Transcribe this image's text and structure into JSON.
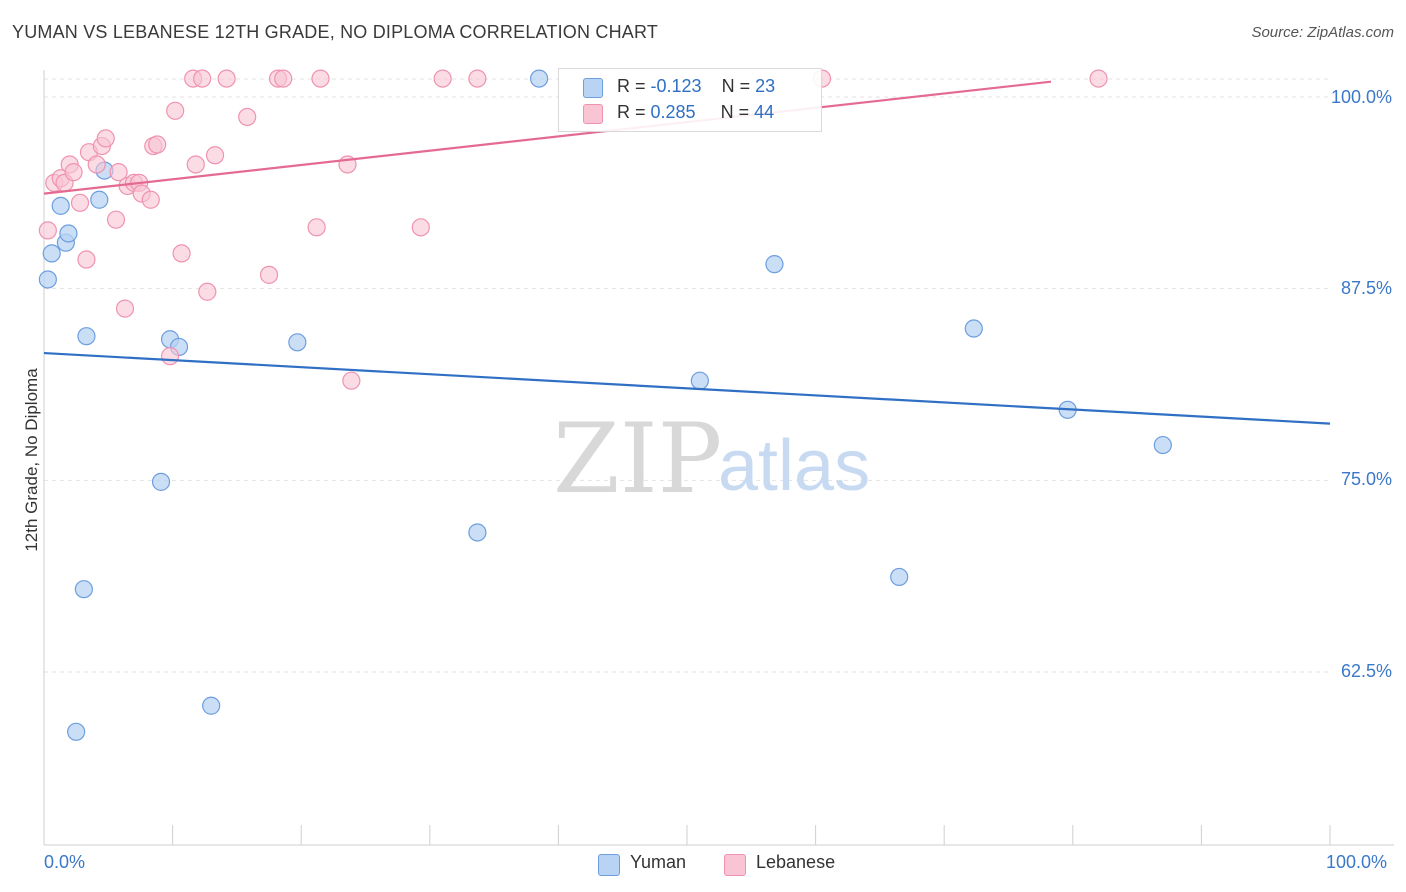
{
  "header": {
    "title": "YUMAN VS LEBANESE 12TH GRADE, NO DIPLOMA CORRELATION CHART",
    "source": "Source: ZipAtlas.com"
  },
  "watermark": {
    "zip": "ZIP",
    "atlas": "atlas"
  },
  "legend_box": {
    "row1": {
      "r_label": "R = ",
      "r_value": "-0.123",
      "n_label": "N = ",
      "n_value": "23"
    },
    "row2": {
      "r_label": "R = ",
      "r_value": "0.285",
      "n_label": "N = ",
      "n_value": "44"
    }
  },
  "bottom_legend": {
    "yuman": "Yuman",
    "lebanese": "Lebanese"
  },
  "colors": {
    "yuman_fill": "#b8d3f3",
    "yuman_stroke": "#6d9ee0",
    "yuman_line": "#2f6fc4",
    "lebanese_fill": "#f9c4d4",
    "lebanese_stroke": "#ef93b0",
    "lebanese_line": "#e46a92",
    "grid": "#e2e2e2",
    "tick_text": "#3b78c9"
  },
  "chart_data": {
    "type": "scatter",
    "title": "YUMAN VS LEBANESE 12TH GRADE, NO DIPLOMA CORRELATION CHART",
    "xlabel": "",
    "ylabel": "12th Grade, No Diploma",
    "xlim": [
      0,
      100
    ],
    "ylim": [
      52,
      101
    ],
    "x_tick_labels": [
      "0.0%",
      "100.0%"
    ],
    "y_ticks": [
      62.5,
      75.0,
      87.5,
      100.0
    ],
    "y_tick_labels": [
      "62.5%",
      "75.0%",
      "87.5%",
      "100.0%"
    ],
    "grid": true,
    "legend": "top-center",
    "series": [
      {
        "name": "Yuman",
        "R": -0.123,
        "N": 23,
        "trend": {
          "x": [
            0,
            100
          ],
          "y": [
            83.3,
            78.7
          ]
        },
        "points": [
          {
            "x": 0.3,
            "y": 88.1
          },
          {
            "x": 0.6,
            "y": 89.8
          },
          {
            "x": 1.3,
            "y": 92.9
          },
          {
            "x": 1.7,
            "y": 90.5
          },
          {
            "x": 1.9,
            "y": 91.1
          },
          {
            "x": 2.5,
            "y": 58.6
          },
          {
            "x": 3.1,
            "y": 67.9
          },
          {
            "x": 3.3,
            "y": 84.4
          },
          {
            "x": 4.3,
            "y": 93.3
          },
          {
            "x": 4.7,
            "y": 95.2
          },
          {
            "x": 9.1,
            "y": 74.9
          },
          {
            "x": 9.8,
            "y": 84.2
          },
          {
            "x": 10.5,
            "y": 83.7
          },
          {
            "x": 13.0,
            "y": 60.3
          },
          {
            "x": 19.7,
            "y": 84.0
          },
          {
            "x": 33.7,
            "y": 71.6
          },
          {
            "x": 38.5,
            "y": 101.2
          },
          {
            "x": 51.0,
            "y": 81.5
          },
          {
            "x": 56.8,
            "y": 89.1
          },
          {
            "x": 66.5,
            "y": 68.7
          },
          {
            "x": 72.3,
            "y": 84.9
          },
          {
            "x": 79.6,
            "y": 79.6
          },
          {
            "x": 87.0,
            "y": 77.3
          }
        ]
      },
      {
        "name": "Lebanese",
        "R": 0.285,
        "N": 44,
        "trend": {
          "x": [
            0,
            78.3
          ],
          "y": [
            93.7,
            101.0
          ]
        },
        "points": [
          {
            "x": 0.3,
            "y": 91.3
          },
          {
            "x": 0.8,
            "y": 94.4
          },
          {
            "x": 1.3,
            "y": 94.7
          },
          {
            "x": 1.6,
            "y": 94.4
          },
          {
            "x": 2.0,
            "y": 95.6
          },
          {
            "x": 2.3,
            "y": 95.1
          },
          {
            "x": 2.8,
            "y": 93.1
          },
          {
            "x": 3.3,
            "y": 89.4
          },
          {
            "x": 3.5,
            "y": 96.4
          },
          {
            "x": 4.1,
            "y": 95.6
          },
          {
            "x": 4.5,
            "y": 96.8
          },
          {
            "x": 4.8,
            "y": 97.3
          },
          {
            "x": 5.6,
            "y": 92.0
          },
          {
            "x": 5.8,
            "y": 95.1
          },
          {
            "x": 6.3,
            "y": 86.2
          },
          {
            "x": 6.5,
            "y": 94.2
          },
          {
            "x": 7.0,
            "y": 94.4
          },
          {
            "x": 7.4,
            "y": 94.4
          },
          {
            "x": 7.6,
            "y": 93.7
          },
          {
            "x": 8.3,
            "y": 93.3
          },
          {
            "x": 8.5,
            "y": 96.8
          },
          {
            "x": 8.8,
            "y": 96.9
          },
          {
            "x": 9.8,
            "y": 83.1
          },
          {
            "x": 10.2,
            "y": 99.1
          },
          {
            "x": 10.7,
            "y": 89.8
          },
          {
            "x": 11.6,
            "y": 101.2
          },
          {
            "x": 11.8,
            "y": 95.6
          },
          {
            "x": 12.3,
            "y": 101.2
          },
          {
            "x": 12.7,
            "y": 87.3
          },
          {
            "x": 13.3,
            "y": 96.2
          },
          {
            "x": 14.2,
            "y": 101.2
          },
          {
            "x": 15.8,
            "y": 98.7
          },
          {
            "x": 17.5,
            "y": 88.4
          },
          {
            "x": 18.2,
            "y": 101.2
          },
          {
            "x": 18.6,
            "y": 101.2
          },
          {
            "x": 21.2,
            "y": 91.5
          },
          {
            "x": 21.5,
            "y": 101.2
          },
          {
            "x": 23.6,
            "y": 95.6
          },
          {
            "x": 23.9,
            "y": 81.5
          },
          {
            "x": 29.3,
            "y": 91.5
          },
          {
            "x": 31.0,
            "y": 101.2
          },
          {
            "x": 33.7,
            "y": 101.2
          },
          {
            "x": 60.5,
            "y": 101.2
          },
          {
            "x": 82.0,
            "y": 101.2
          }
        ]
      }
    ]
  }
}
